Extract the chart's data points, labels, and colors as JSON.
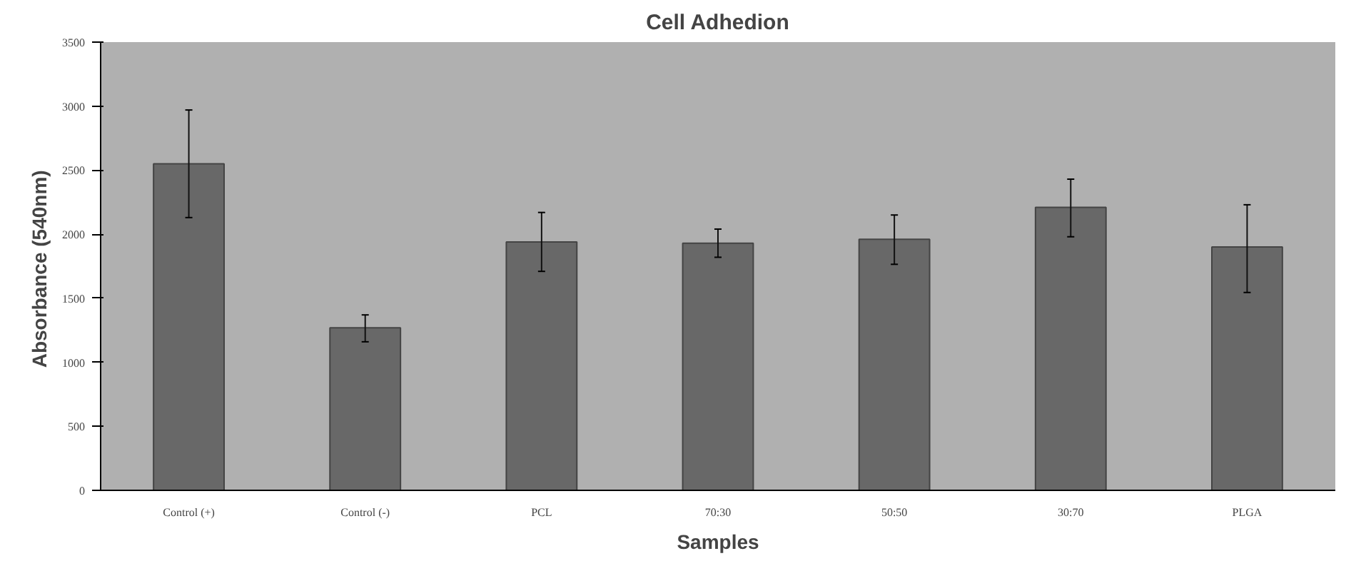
{
  "chart_data": {
    "type": "bar",
    "title": "Cell Adhedion",
    "xlabel": "Samples",
    "ylabel": "Absorbance  (540nm)",
    "categories": [
      "Control (+)",
      "Control (-)",
      "PCL",
      "70:30",
      "50:50",
      "30:70",
      "PLGA"
    ],
    "values": [
      2550,
      1270,
      1940,
      1930,
      1960,
      2210,
      1900
    ],
    "errors": [
      [
        2130,
        2970
      ],
      [
        1160,
        1370
      ],
      [
        1710,
        2170
      ],
      [
        1820,
        2040
      ],
      [
        1765,
        2150
      ],
      [
        1980,
        2430
      ],
      [
        1545,
        2230
      ]
    ],
    "color": "#686868",
    "ylim": [
      0,
      3500
    ],
    "yticks": [
      0,
      500,
      1000,
      1500,
      2000,
      2500,
      3000,
      3500
    ],
    "grid": false
  }
}
